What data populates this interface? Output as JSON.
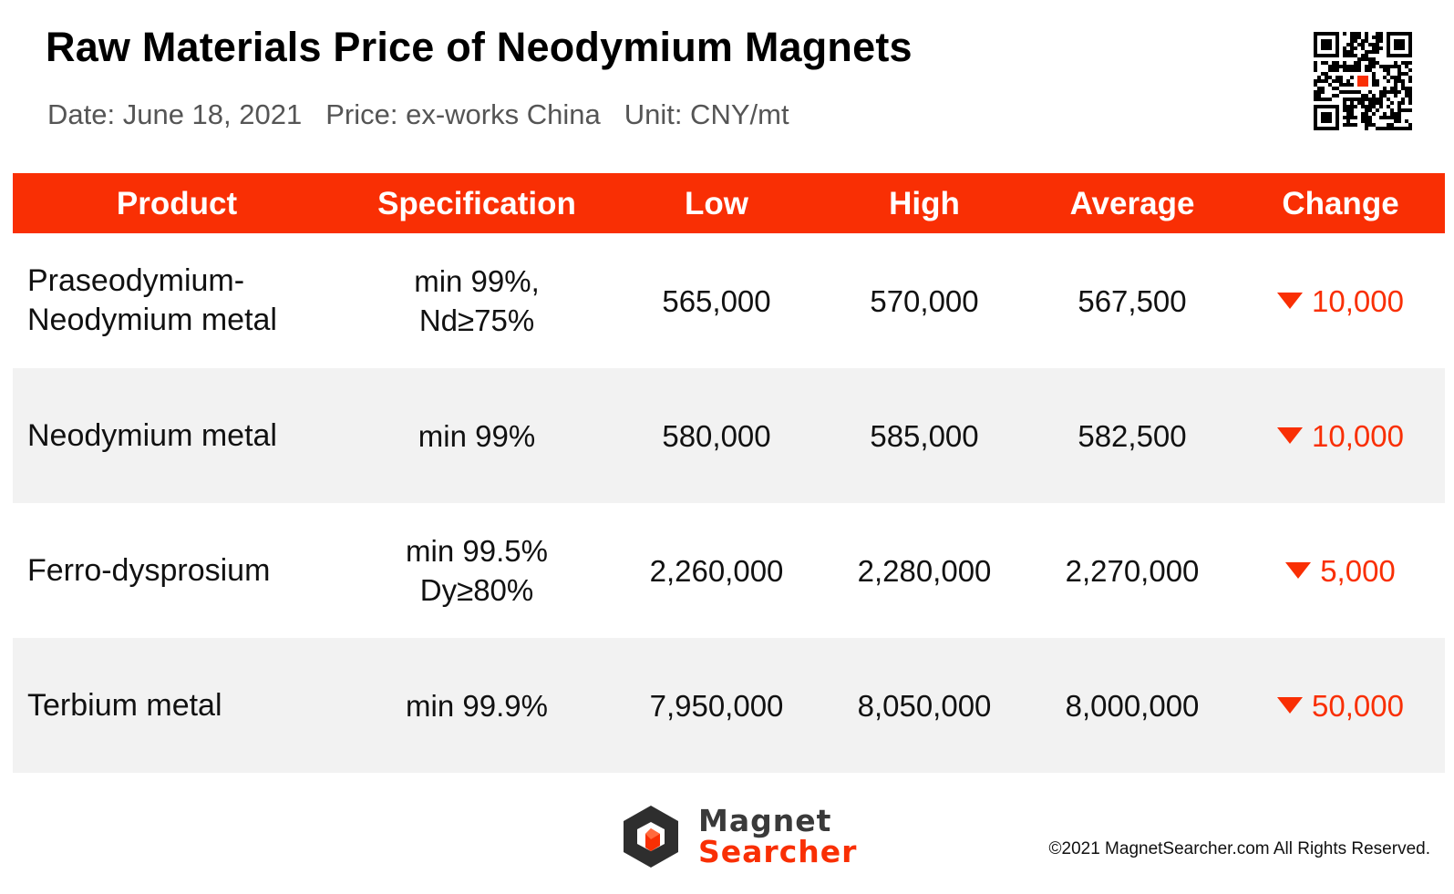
{
  "header": {
    "title": "Raw Materials Price of Neodymium Magnets",
    "date": "Date: June 18, 2021",
    "price": "Price: ex-works China",
    "unit": "Unit: CNY/mt"
  },
  "table": {
    "columns": [
      "Product",
      "Specification",
      "Low",
      "High",
      "Average",
      "Change"
    ],
    "rows": [
      {
        "product": "Praseodymium-\nNeodymium metal",
        "spec": "min 99%,\nNd≥75%",
        "low": "565,000",
        "high": "570,000",
        "average": "567,500",
        "change": "10,000",
        "direction": "down"
      },
      {
        "product": "Neodymium metal",
        "spec": "min 99%",
        "low": "580,000",
        "high": "585,000",
        "average": "582,500",
        "change": "10,000",
        "direction": "down"
      },
      {
        "product": "Ferro-dysprosium",
        "spec": "min 99.5%\nDy≥80%",
        "low": "2,260,000",
        "high": "2,280,000",
        "average": "2,270,000",
        "change": "5,000",
        "direction": "down"
      },
      {
        "product": "Terbium metal",
        "spec": "min 99.9%",
        "low": "7,950,000",
        "high": "8,050,000",
        "average": "8,000,000",
        "change": "50,000",
        "direction": "down"
      }
    ]
  },
  "footer": {
    "logo_line1": "Magnet",
    "logo_line2": "Searcher",
    "copyright": "©2021 MagnetSearcher.com All Rights Reserved."
  },
  "icons": {
    "qr": "qr-code-icon",
    "down": "triangle-down-icon",
    "logo": "magnet-searcher-logo-icon"
  },
  "colors": {
    "accent": "#f92f04",
    "row_alt": "#f2f2f2",
    "logo_dark": "#3a3a3a"
  }
}
